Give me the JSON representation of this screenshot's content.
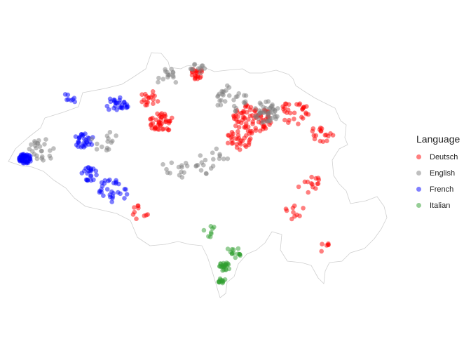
{
  "legend": {
    "title": "Language",
    "items": [
      {
        "label": "Deutsch",
        "color": "#FF0000"
      },
      {
        "label": "English",
        "color": "#808080"
      },
      {
        "label": "French",
        "color": "#0000FF"
      },
      {
        "label": "Italian",
        "color": "#2E9E2E"
      }
    ]
  },
  "map": {
    "region": "Switzerland",
    "border_color": "#CFCFCF",
    "point_opacity": 0.5
  }
}
